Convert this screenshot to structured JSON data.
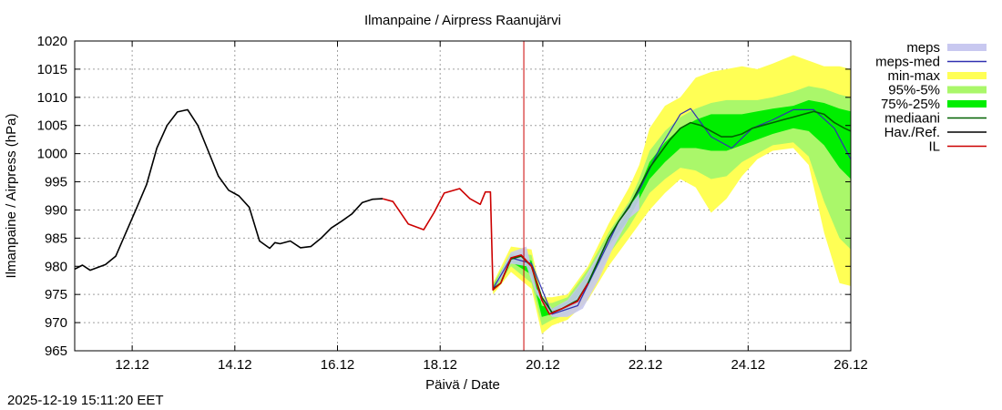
{
  "chart_data": {
    "type": "line",
    "title": "Ilmanpaine / Airpress Raanujärvi",
    "xlabel": "Päivä / Date",
    "ylabel": "Ilmanpaine / Airpress (hPa)",
    "ylim": [
      965,
      1020
    ],
    "xlim": [
      11.0,
      26.12
    ],
    "yticks": [
      965,
      970,
      975,
      980,
      985,
      990,
      995,
      1000,
      1005,
      1010,
      1015,
      1020
    ],
    "xticks": [
      {
        "x": 12.12,
        "label": "12.12"
      },
      {
        "x": 14.12,
        "label": "14.12"
      },
      {
        "x": 16.12,
        "label": "16.12"
      },
      {
        "x": 18.12,
        "label": "18.12"
      },
      {
        "x": 20.12,
        "label": "20.12"
      },
      {
        "x": 22.12,
        "label": "22.12"
      },
      {
        "x": 24.12,
        "label": "24.12"
      },
      {
        "x": 26.12,
        "label": "26.12"
      }
    ],
    "grid": true,
    "legend_position": "outside-right",
    "legend": [
      {
        "label": "meps",
        "color": "#c8c8f0",
        "kind": "band"
      },
      {
        "label": "meps-med",
        "color": "#3030b0",
        "kind": "line"
      },
      {
        "label": "min-max",
        "color": "#ffff55",
        "kind": "band"
      },
      {
        "label": "95%-5%",
        "color": "#aaf76a",
        "kind": "band"
      },
      {
        "label": "75%-25%",
        "color": "#00ee00",
        "kind": "band"
      },
      {
        "label": "mediaani",
        "color": "#006000",
        "kind": "line"
      },
      {
        "label": "Hav./Ref.",
        "color": "#000000",
        "kind": "line"
      },
      {
        "label": "IL",
        "color": "#cc0000",
        "kind": "line"
      }
    ],
    "vline": {
      "x": 19.75,
      "color": "#cc0000"
    },
    "series": [
      {
        "name": "Hav./Ref.",
        "color": "#000000",
        "x": [
          11.0,
          11.15,
          11.3,
          11.6,
          11.8,
          12.0,
          12.2,
          12.4,
          12.6,
          12.8,
          13.0,
          13.2,
          13.4,
          13.6,
          13.8,
          14.0,
          14.2,
          14.4,
          14.6,
          14.8,
          14.9,
          15.0,
          15.2,
          15.4,
          15.6,
          15.8,
          16.0,
          16.2,
          16.4,
          16.6,
          16.8,
          17.0
        ],
        "y": [
          979.5,
          980.2,
          979.3,
          980.3,
          981.8,
          986.0,
          990.2,
          994.5,
          1001.0,
          1005.0,
          1007.4,
          1007.8,
          1005.0,
          1000.5,
          996.0,
          993.5,
          992.5,
          990.5,
          984.5,
          983.2,
          984.2,
          984.0,
          984.5,
          983.3,
          983.5,
          985.0,
          986.8,
          988.0,
          989.3,
          991.3,
          991.9,
          992.0
        ]
      },
      {
        "name": "IL",
        "color": "#cc0000",
        "x": [
          17.0,
          17.2,
          17.5,
          17.8,
          18.0,
          18.2,
          18.5,
          18.7,
          18.9,
          19.0,
          19.1,
          19.15,
          19.3,
          19.5,
          19.7,
          19.9,
          20.1,
          20.25,
          20.5,
          20.8,
          21.0
        ],
        "y": [
          992.0,
          991.5,
          987.5,
          986.5,
          989.5,
          993.0,
          993.8,
          992.0,
          991.0,
          993.2,
          993.2,
          975.8,
          977.0,
          981.5,
          982.0,
          980.0,
          974.0,
          971.5,
          972.5,
          973.8,
          977.0
        ]
      },
      {
        "name": "mediaani",
        "color": "#006000",
        "x": [
          19.15,
          19.3,
          19.5,
          19.7,
          19.9,
          20.1,
          20.3,
          20.5,
          20.8,
          21.0,
          21.2,
          21.4,
          21.6,
          21.8,
          22.0,
          22.2,
          22.4,
          22.6,
          22.8,
          23.0,
          23.2,
          23.4,
          23.6,
          23.8,
          24.0,
          24.2,
          24.4,
          24.6,
          24.8,
          25.0,
          25.2,
          25.4,
          25.6,
          25.8,
          26.0,
          26.12
        ],
        "y": [
          976.0,
          977.0,
          981.3,
          981.8,
          980.0,
          974.5,
          971.8,
          972.5,
          974.0,
          977.0,
          981.0,
          985.0,
          988.0,
          990.5,
          994.0,
          997.5,
          1000.0,
          1002.5,
          1004.5,
          1005.5,
          1005.0,
          1004.0,
          1003.0,
          1003.0,
          1003.5,
          1004.5,
          1005.0,
          1005.5,
          1006.0,
          1006.5,
          1007.0,
          1007.5,
          1007.0,
          1005.5,
          1004.5,
          1004.0
        ]
      },
      {
        "name": "meps-med",
        "color": "#3030b0",
        "x": [
          19.15,
          19.5,
          19.9,
          20.3,
          20.8,
          21.2,
          21.6,
          22.0,
          22.4,
          22.8,
          23.0,
          23.4,
          23.8,
          24.2,
          24.6,
          25.0,
          25.4,
          25.8,
          26.12
        ],
        "y": [
          976.0,
          981.5,
          980.5,
          971.5,
          973.0,
          980.5,
          988.0,
          993.5,
          1001.0,
          1007.0,
          1008.0,
          1003.0,
          1001.0,
          1004.5,
          1006.0,
          1007.8,
          1007.8,
          1004.5,
          999.0
        ]
      }
    ],
    "bands": [
      {
        "name": "min-max",
        "color": "#ffff55",
        "x": [
          19.15,
          19.5,
          19.9,
          20.1,
          20.3,
          20.6,
          21.0,
          21.4,
          21.8,
          22.0,
          22.2,
          22.5,
          22.8,
          23.1,
          23.4,
          23.7,
          24.0,
          24.3,
          24.6,
          25.0,
          25.3,
          25.6,
          25.9,
          26.12
        ],
        "lower": [
          975.0,
          979.0,
          976.0,
          968.0,
          969.5,
          970.5,
          974.0,
          980.0,
          985.0,
          987.5,
          990.0,
          993.0,
          995.5,
          994.0,
          989.5,
          992.0,
          996.0,
          999.0,
          1000.5,
          1001.0,
          998.0,
          986.0,
          977.0,
          976.5
        ],
        "upper": [
          977.0,
          983.5,
          983.0,
          974.5,
          974.5,
          975.0,
          980.0,
          987.5,
          994.0,
          998.0,
          1004.5,
          1008.5,
          1010.0,
          1013.5,
          1014.5,
          1015.0,
          1015.5,
          1015.0,
          1016.0,
          1017.5,
          1016.5,
          1015.5,
          1015.5,
          1015.0
        ]
      },
      {
        "name": "95%-5%",
        "color": "#aaf76a",
        "x": [
          19.15,
          19.5,
          19.9,
          20.1,
          20.3,
          20.6,
          21.0,
          21.4,
          21.8,
          22.0,
          22.2,
          22.5,
          22.8,
          23.1,
          23.4,
          23.7,
          24.0,
          24.3,
          24.6,
          25.0,
          25.3,
          25.6,
          25.9,
          26.12
        ],
        "lower": [
          975.5,
          980.0,
          977.0,
          969.5,
          970.5,
          971.5,
          975.5,
          982.0,
          987.0,
          990.0,
          993.0,
          995.5,
          997.5,
          997.0,
          995.5,
          996.0,
          998.5,
          1000.0,
          1001.5,
          1002.0,
          999.5,
          991.5,
          985.0,
          983.0
        ],
        "upper": [
          976.8,
          982.5,
          982.0,
          973.5,
          973.5,
          974.5,
          979.5,
          986.0,
          991.5,
          995.5,
          1000.5,
          1004.0,
          1006.5,
          1008.0,
          1009.0,
          1009.5,
          1009.5,
          1009.5,
          1010.0,
          1011.0,
          1012.0,
          1011.5,
          1010.5,
          1010.0
        ]
      },
      {
        "name": "75%-25%",
        "color": "#00ee00",
        "x": [
          19.15,
          19.5,
          19.9,
          20.1,
          20.3,
          20.6,
          21.0,
          21.4,
          21.8,
          22.0,
          22.2,
          22.5,
          22.8,
          23.1,
          23.4,
          23.7,
          24.0,
          24.3,
          24.6,
          25.0,
          25.3,
          25.6,
          25.9,
          26.12
        ],
        "lower": [
          975.7,
          980.8,
          978.5,
          971.0,
          971.5,
          972.5,
          976.5,
          983.5,
          988.5,
          992.0,
          995.5,
          998.5,
          1001.0,
          1001.0,
          1000.5,
          1000.5,
          1001.5,
          1002.5,
          1003.5,
          1004.5,
          1004.0,
          1001.5,
          997.5,
          995.5
        ],
        "upper": [
          976.4,
          982.2,
          981.0,
          973.0,
          972.5,
          973.8,
          978.5,
          985.0,
          990.0,
          994.0,
          998.5,
          1002.0,
          1004.5,
          1006.0,
          1007.0,
          1007.0,
          1007.0,
          1007.5,
          1008.0,
          1008.5,
          1009.5,
          1009.0,
          1008.0,
          1007.5
        ]
      },
      {
        "name": "meps",
        "color": "#c8c8f0",
        "x": [
          19.15,
          19.5,
          19.8,
          20.0,
          20.3,
          20.6,
          20.9,
          21.2,
          21.5,
          21.8,
          22.0
        ],
        "lower": [
          975.8,
          980.5,
          980.0,
          975.0,
          971.0,
          971.0,
          972.5,
          977.5,
          983.5,
          988.5,
          990.0
        ],
        "upper": [
          976.2,
          982.5,
          983.5,
          976.0,
          972.5,
          974.0,
          977.5,
          982.0,
          986.5,
          990.5,
          993.0
        ]
      }
    ]
  },
  "footer": {
    "timestamp": "2025-12-19 15:11:20 EET"
  }
}
